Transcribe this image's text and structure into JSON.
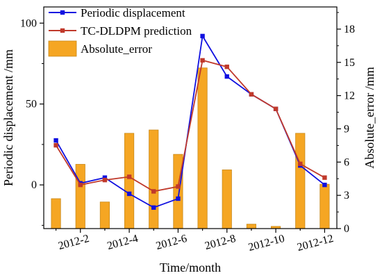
{
  "chart_data": {
    "type": "bar+line",
    "x": [
      "2012-1",
      "2012-2",
      "2012-3",
      "2012-4",
      "2012-5",
      "2012-6",
      "2012-7",
      "2012-8",
      "2012-9",
      "2012-10",
      "2012-11",
      "2012-12"
    ],
    "x_tick_labels": [
      "2012-2",
      "2012-4",
      "2012-6",
      "2012-8",
      "2012-10",
      "2012-12"
    ],
    "xlabel": "Time/month",
    "ylabel_left": "Periodic displacement /mm",
    "ylabel_right": "Absolute_error /mm",
    "ylim_left": [
      -27,
      110
    ],
    "ylim_right": [
      0,
      20
    ],
    "yticks_left": [
      0,
      50,
      100
    ],
    "yticks_right": [
      0,
      3,
      6,
      9,
      12,
      15,
      18
    ],
    "grid": false,
    "legend_position": "top-left",
    "series": [
      {
        "name": "Periodic displacement",
        "type": "line",
        "axis": "left",
        "color": "#1010e0",
        "marker": "square",
        "values": [
          27.5,
          1.0,
          4.5,
          -5.5,
          -14.0,
          -8.5,
          92.0,
          67.0,
          56.0,
          47.0,
          12.0,
          0.0
        ]
      },
      {
        "name": "TC-DLDPM prediction",
        "type": "line",
        "axis": "left",
        "color": "#c0392b",
        "marker": "square",
        "values": [
          24.5,
          0.0,
          3.0,
          5.0,
          -4.0,
          -1.0,
          77.0,
          73.0,
          56.0,
          47.0,
          13.0,
          4.5
        ]
      },
      {
        "name": "Absolute_error",
        "type": "bar",
        "axis": "right",
        "color": "#f5a623",
        "values": [
          2.7,
          5.8,
          2.4,
          8.6,
          8.9,
          6.7,
          14.5,
          5.3,
          0.4,
          0.2,
          8.6,
          4.0
        ]
      }
    ]
  }
}
